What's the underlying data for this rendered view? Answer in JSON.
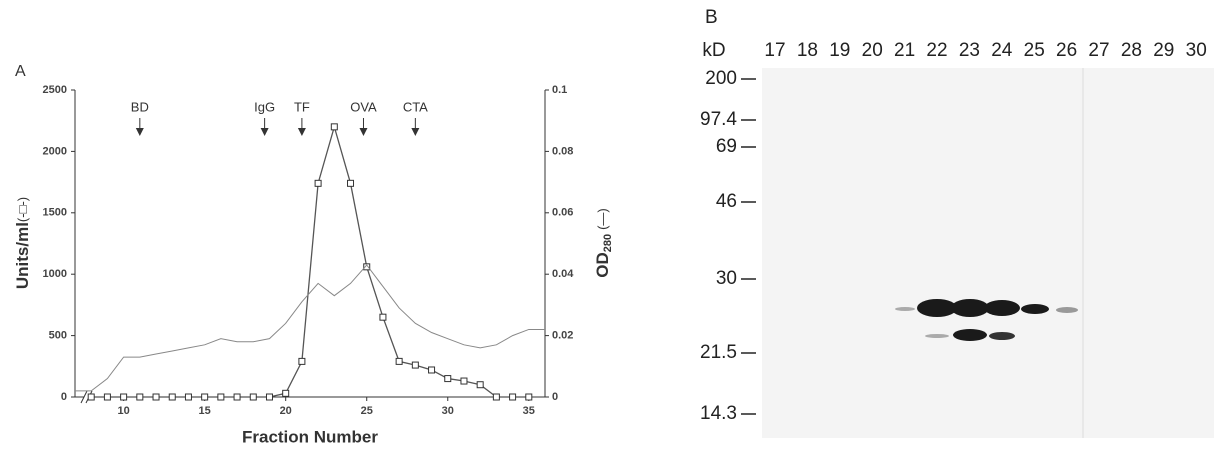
{
  "panel_label": "A",
  "chart_data": {
    "type": "line",
    "xlabel": "Fraction Number",
    "ylabel": "Units/ml",
    "ylabel_suffix": "(-□-)",
    "y2label": "OD",
    "y2label_subscript": "280",
    "y2label_suffix": "(—)",
    "xlim": [
      7,
      36
    ],
    "xticks": [
      10,
      15,
      20,
      25,
      30,
      35
    ],
    "ylim": [
      0,
      2500
    ],
    "yticks": [
      0,
      500,
      1000,
      1500,
      2000,
      2500
    ],
    "y2lim": [
      0,
      0.1
    ],
    "y2ticks": [
      0,
      0.02,
      0.04,
      0.06,
      0.08,
      0.1
    ],
    "annotations": [
      {
        "text": "BD",
        "x": 11
      },
      {
        "text": "IgG",
        "x": 18.7
      },
      {
        "text": "TF",
        "x": 21
      },
      {
        "text": "OVA",
        "x": 24.8
      },
      {
        "text": "CTA",
        "x": 28
      }
    ],
    "series": [
      {
        "color": "#555555",
        "marker": "square",
        "x": [
          8,
          9,
          10,
          11,
          12,
          13,
          14,
          15,
          16,
          17,
          18,
          19,
          20,
          21,
          22,
          23,
          24,
          25,
          26,
          27,
          28,
          29,
          30,
          31,
          32,
          33,
          34,
          35
        ],
        "values": [
          0,
          0,
          0,
          0,
          0,
          0,
          0,
          0,
          0,
          0,
          0,
          0,
          30,
          290,
          1740,
          2200,
          1740,
          1060,
          650,
          290,
          260,
          220,
          150,
          130,
          100,
          0,
          0,
          0
        ]
      },
      {
        "color": "#888888",
        "axis": "y2",
        "x": [
          7,
          8,
          9,
          10,
          11,
          12,
          13,
          14,
          15,
          16,
          17,
          18,
          19,
          20,
          21,
          22,
          23,
          24,
          25,
          26,
          27,
          28,
          29,
          30,
          31,
          32,
          33,
          34,
          35,
          36
        ],
        "values": [
          0.002,
          0.002,
          0.006,
          0.013,
          0.013,
          0.014,
          0.015,
          0.016,
          0.017,
          0.019,
          0.018,
          0.018,
          0.019,
          0.024,
          0.031,
          0.037,
          0.033,
          0.037,
          0.043,
          0.036,
          0.029,
          0.024,
          0.021,
          0.019,
          0.017,
          0.016,
          0.017,
          0.02,
          0.022,
          0.022
        ]
      }
    ]
  },
  "gel": {
    "panel_label": "B",
    "unit": "kD",
    "lanes": [
      17,
      18,
      19,
      20,
      21,
      22,
      23,
      24,
      25,
      26,
      27,
      28,
      29,
      30
    ],
    "markers": [
      200,
      97.4,
      69,
      46,
      30,
      21.5,
      14.3
    ]
  }
}
